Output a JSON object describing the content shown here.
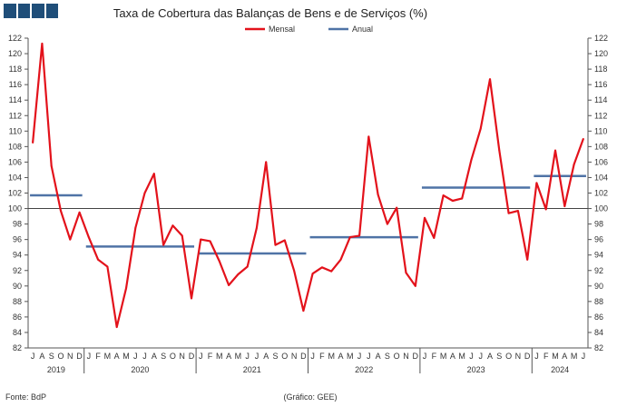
{
  "chart_data": {
    "type": "line",
    "title": "Taxa de Cobertura das Balanças de Bens e de Serviços (%)",
    "ylim": [
      82,
      122
    ],
    "yticks": [
      82,
      84,
      86,
      88,
      90,
      92,
      94,
      96,
      98,
      100,
      102,
      104,
      106,
      108,
      110,
      112,
      114,
      116,
      118,
      120,
      122
    ],
    "reference_line": 100,
    "month_labels": [
      "J",
      "A",
      "S",
      "O",
      "N",
      "D",
      "J",
      "F",
      "M",
      "A",
      "M",
      "J",
      "J",
      "A",
      "S",
      "O",
      "N",
      "D",
      "J",
      "F",
      "M",
      "A",
      "M",
      "J",
      "J",
      "A",
      "S",
      "O",
      "N",
      "D",
      "J",
      "F",
      "M",
      "A",
      "M",
      "J",
      "J",
      "A",
      "S",
      "O",
      "N",
      "D",
      "J",
      "F",
      "M",
      "A",
      "M",
      "J",
      "J",
      "A",
      "S",
      "O",
      "N",
      "D",
      "J",
      "F",
      "M",
      "A",
      "M",
      "J"
    ],
    "years": [
      {
        "label": "2019",
        "start": 0,
        "end": 6
      },
      {
        "label": "2020",
        "start": 6,
        "end": 18
      },
      {
        "label": "2021",
        "start": 18,
        "end": 30
      },
      {
        "label": "2022",
        "start": 30,
        "end": 42
      },
      {
        "label": "2023",
        "start": 42,
        "end": 54
      },
      {
        "label": "2024",
        "start": 54,
        "end": 60
      }
    ],
    "series": [
      {
        "name": "Mensal",
        "color": "#e3121b",
        "values": [
          108.5,
          121.3,
          105.5,
          99.7,
          96.0,
          99.5,
          96.3,
          93.4,
          92.5,
          84.7,
          89.7,
          97.5,
          102.0,
          104.5,
          95.3,
          97.8,
          96.5,
          88.4,
          96.0,
          95.8,
          93.2,
          90.1,
          91.5,
          92.5,
          97.5,
          106.0,
          95.3,
          95.9,
          92.0,
          86.8,
          91.6,
          92.4,
          91.9,
          93.4,
          96.3,
          96.5,
          109.3,
          101.8,
          98.0,
          100.1,
          91.7,
          90.0,
          98.8,
          96.2,
          101.7,
          101.0,
          101.3,
          106.3,
          110.3,
          116.7,
          107.5,
          99.4,
          99.7,
          93.4,
          103.3,
          99.9,
          107.5,
          100.3,
          105.7,
          109.0
        ]
      },
      {
        "name": "Anual",
        "color": "#4f73a6",
        "segments": [
          {
            "year": "2019",
            "value": 101.7
          },
          {
            "year": "2020",
            "value": 95.1
          },
          {
            "year": "2021",
            "value": 94.2
          },
          {
            "year": "2022",
            "value": 96.3
          },
          {
            "year": "2023",
            "value": 102.7
          },
          {
            "year": "2024",
            "value": 104.2
          }
        ]
      }
    ]
  },
  "footer": {
    "source": "Fonte: BdP",
    "credit": "(Gráfico: GEE)"
  }
}
